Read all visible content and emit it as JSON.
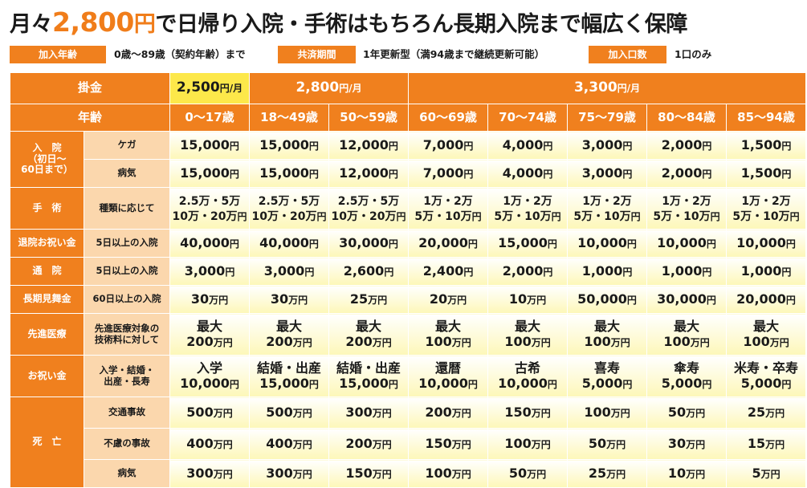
{
  "title": {
    "pre": "月々",
    "amount": "2,800",
    "yen": "円",
    "post": "で日帰り入院・手術はもちろん長期入院まで幅広く保障"
  },
  "info": [
    {
      "label": "加入年齢",
      "value": "0歳～89歳（契約年齢）まで"
    },
    {
      "label": "共済期間",
      "value": "1年更新型（満94歳まで継続更新可能）"
    },
    {
      "label": "加入口数",
      "value": "1口のみ"
    }
  ],
  "header": {
    "premium_label": "掛金",
    "age_label": "年齢",
    "premiums": [
      {
        "amount": "2,500",
        "unit": "円/月"
      },
      {
        "amount": "2,800",
        "unit": "円/月"
      },
      {
        "amount": "3,300",
        "unit": "円/月"
      }
    ],
    "ages": [
      "0～17歳",
      "18～49歳",
      "50～59歳",
      "60～69歳",
      "70～74歳",
      "75～79歳",
      "80～84歳",
      "85～94歳"
    ]
  },
  "categories": {
    "hospital": "入　院\n（初日～\n60日まで）",
    "surgery": "手　術",
    "discharge": "退院お祝い金",
    "outpatient": "通　院",
    "longterm": "長期見舞金",
    "advanced": "先進医療",
    "celebration": "お祝い金",
    "death": "死　亡"
  },
  "rows": [
    {
      "sub": "ケガ",
      "cells": [
        [
          "15,000",
          "円"
        ],
        [
          "15,000",
          "円"
        ],
        [
          "12,000",
          "円"
        ],
        [
          "7,000",
          "円"
        ],
        [
          "4,000",
          "円"
        ],
        [
          "3,000",
          "円"
        ],
        [
          "2,000",
          "円"
        ],
        [
          "1,500",
          "円"
        ]
      ]
    },
    {
      "sub": "病気",
      "cells": [
        [
          "15,000",
          "円"
        ],
        [
          "15,000",
          "円"
        ],
        [
          "12,000",
          "円"
        ],
        [
          "7,000",
          "円"
        ],
        [
          "4,000",
          "円"
        ],
        [
          "3,000",
          "円"
        ],
        [
          "2,000",
          "円"
        ],
        [
          "1,500",
          "円"
        ]
      ]
    },
    {
      "sub": "種類に応じて",
      "cells": [
        [
          "2.5万・5万\n10万・20万",
          "円"
        ],
        [
          "2.5万・5万\n10万・20万",
          "円"
        ],
        [
          "2.5万・5万\n10万・20万",
          "円"
        ],
        [
          "1万・2万\n5万・10万",
          "円"
        ],
        [
          "1万・2万\n5万・10万",
          "円"
        ],
        [
          "1万・2万\n5万・10万",
          "円"
        ],
        [
          "1万・2万\n5万・10万",
          "円"
        ],
        [
          "1万・2万\n5万・10万",
          "円"
        ]
      ]
    },
    {
      "sub": "5日以上の入院",
      "cells": [
        [
          "40,000",
          "円"
        ],
        [
          "40,000",
          "円"
        ],
        [
          "30,000",
          "円"
        ],
        [
          "20,000",
          "円"
        ],
        [
          "15,000",
          "円"
        ],
        [
          "10,000",
          "円"
        ],
        [
          "10,000",
          "円"
        ],
        [
          "10,000",
          "円"
        ]
      ]
    },
    {
      "sub": "5日以上の入院",
      "cells": [
        [
          "3,000",
          "円"
        ],
        [
          "3,000",
          "円"
        ],
        [
          "2,600",
          "円"
        ],
        [
          "2,400",
          "円"
        ],
        [
          "2,000",
          "円"
        ],
        [
          "1,000",
          "円"
        ],
        [
          "1,000",
          "円"
        ],
        [
          "1,000",
          "円"
        ]
      ]
    },
    {
      "sub": "60日以上の入院",
      "cells": [
        [
          "30",
          "万円"
        ],
        [
          "30",
          "万円"
        ],
        [
          "25",
          "万円"
        ],
        [
          "20",
          "万円"
        ],
        [
          "10",
          "万円"
        ],
        [
          "50,000",
          "円"
        ],
        [
          "30,000",
          "円"
        ],
        [
          "20,000",
          "円"
        ]
      ]
    },
    {
      "sub": "先進医療対象の\n技術料に対して",
      "cells": [
        [
          "最大\n200",
          "万円"
        ],
        [
          "最大\n200",
          "万円"
        ],
        [
          "最大\n200",
          "万円"
        ],
        [
          "最大\n100",
          "万円"
        ],
        [
          "最大\n100",
          "万円"
        ],
        [
          "最大\n100",
          "万円"
        ],
        [
          "最大\n100",
          "万円"
        ],
        [
          "最大\n100",
          "万円"
        ]
      ]
    },
    {
      "sub": "入学・結婚・\n出産・長寿",
      "cells": [
        [
          "入学\n10,000",
          "円"
        ],
        [
          "結婚・出産\n15,000",
          "円"
        ],
        [
          "結婚・出産\n15,000",
          "円"
        ],
        [
          "還暦\n10,000",
          "円"
        ],
        [
          "古希\n10,000",
          "円"
        ],
        [
          "喜寿\n5,000",
          "円"
        ],
        [
          "傘寿\n5,000",
          "円"
        ],
        [
          "米寿・卒寿\n5,000",
          "円"
        ]
      ]
    },
    {
      "sub": "交通事故",
      "cells": [
        [
          "500",
          "万円"
        ],
        [
          "500",
          "万円"
        ],
        [
          "300",
          "万円"
        ],
        [
          "200",
          "万円"
        ],
        [
          "150",
          "万円"
        ],
        [
          "100",
          "万円"
        ],
        [
          "50",
          "万円"
        ],
        [
          "25",
          "万円"
        ]
      ]
    },
    {
      "sub": "不慮の事故",
      "cells": [
        [
          "400",
          "万円"
        ],
        [
          "400",
          "万円"
        ],
        [
          "200",
          "万円"
        ],
        [
          "150",
          "万円"
        ],
        [
          "100",
          "万円"
        ],
        [
          "50",
          "万円"
        ],
        [
          "30",
          "万円"
        ],
        [
          "15",
          "万円"
        ]
      ]
    },
    {
      "sub": "病気",
      "cells": [
        [
          "300",
          "万円"
        ],
        [
          "300",
          "万円"
        ],
        [
          "150",
          "万円"
        ],
        [
          "100",
          "万円"
        ],
        [
          "50",
          "万円"
        ],
        [
          "25",
          "万円"
        ],
        [
          "10",
          "万円"
        ],
        [
          "5",
          "万円"
        ]
      ]
    }
  ]
}
